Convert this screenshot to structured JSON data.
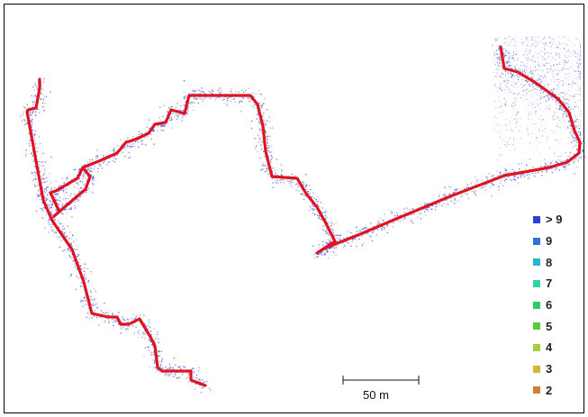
{
  "scale_bar": {
    "label": "50 m"
  },
  "legend": {
    "items": [
      {
        "label": "> 9",
        "color": "#2c3fd6"
      },
      {
        "label": "9",
        "color": "#2f73cf"
      },
      {
        "label": "8",
        "color": "#27b7cf"
      },
      {
        "label": "7",
        "color": "#2fd3a9"
      },
      {
        "label": "6",
        "color": "#33c96a"
      },
      {
        "label": "5",
        "color": "#5dc935"
      },
      {
        "label": "4",
        "color": "#a7cf33"
      },
      {
        "label": "3",
        "color": "#d2b935"
      },
      {
        "label": "2",
        "color": "#d4803a"
      }
    ]
  },
  "colors": {
    "trajectory": "#e0141e",
    "point_cloud": "#3b46e0"
  }
}
